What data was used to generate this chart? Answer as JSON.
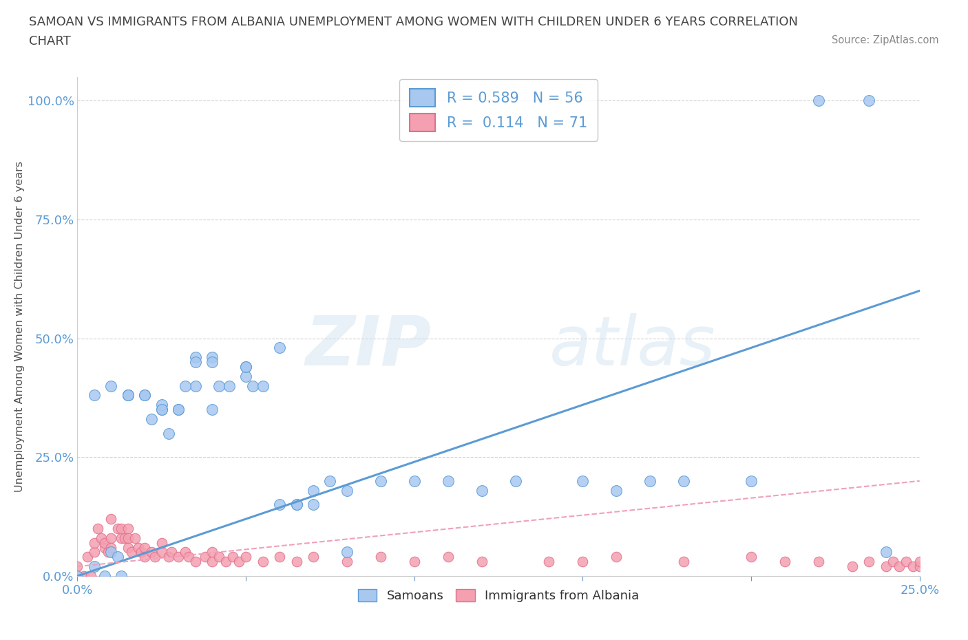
{
  "title_line1": "SAMOAN VS IMMIGRANTS FROM ALBANIA UNEMPLOYMENT AMONG WOMEN WITH CHILDREN UNDER 6 YEARS CORRELATION",
  "title_line2": "CHART",
  "source": "Source: ZipAtlas.com",
  "ylabel": "Unemployment Among Women with Children Under 6 years",
  "xlim": [
    0.0,
    0.25
  ],
  "ylim": [
    0.0,
    1.05
  ],
  "yticks": [
    0.0,
    0.25,
    0.5,
    0.75,
    1.0
  ],
  "ytick_labels": [
    "0.0%",
    "25.0%",
    "50.0%",
    "75.0%",
    "100.0%"
  ],
  "xticks": [
    0.0,
    0.05,
    0.1,
    0.15,
    0.2,
    0.25
  ],
  "xtick_labels": [
    "0.0%",
    "",
    "",
    "",
    "",
    "25.0%"
  ],
  "samoan_R": 0.589,
  "samoan_N": 56,
  "albania_R": 0.114,
  "albania_N": 71,
  "samoan_color": "#a8c8f0",
  "albania_color": "#f4a0b0",
  "samoan_line_color": "#5b9bd5",
  "albania_line_color": "#f0a0b8",
  "watermark_zip": "ZIP",
  "watermark_atlas": "atlas",
  "background_color": "#ffffff",
  "grid_color": "#cccccc",
  "title_color": "#444444",
  "axis_color": "#5b9bd5",
  "samoan_scatter_x": [
    0.005,
    0.01,
    0.015,
    0.02,
    0.025,
    0.025,
    0.03,
    0.035,
    0.04,
    0.04,
    0.042,
    0.045,
    0.05,
    0.06,
    0.065,
    0.07,
    0.075,
    0.08,
    0.09,
    0.1,
    0.11,
    0.12,
    0.13,
    0.15,
    0.16,
    0.17,
    0.18,
    0.2,
    0.22,
    0.235,
    0.24,
    0.0,
    0.005,
    0.008,
    0.01,
    0.012,
    0.013,
    0.015,
    0.015,
    0.02,
    0.022,
    0.025,
    0.027,
    0.03,
    0.032,
    0.035,
    0.035,
    0.04,
    0.05,
    0.05,
    0.052,
    0.055,
    0.06,
    0.065,
    0.07,
    0.08
  ],
  "samoan_scatter_y": [
    0.38,
    0.4,
    0.38,
    0.38,
    0.35,
    0.36,
    0.35,
    0.4,
    0.46,
    0.45,
    0.4,
    0.4,
    0.44,
    0.15,
    0.15,
    0.18,
    0.2,
    0.18,
    0.2,
    0.2,
    0.2,
    0.18,
    0.2,
    0.2,
    0.18,
    0.2,
    0.2,
    0.2,
    1.0,
    1.0,
    0.05,
    0.0,
    0.02,
    0.0,
    0.05,
    0.04,
    0.0,
    0.38,
    0.38,
    0.38,
    0.33,
    0.35,
    0.3,
    0.35,
    0.4,
    0.46,
    0.45,
    0.35,
    0.42,
    0.44,
    0.4,
    0.4,
    0.48,
    0.15,
    0.15,
    0.05
  ],
  "albania_scatter_x": [
    0.0,
    0.0,
    0.002,
    0.003,
    0.004,
    0.005,
    0.005,
    0.006,
    0.007,
    0.008,
    0.008,
    0.009,
    0.01,
    0.01,
    0.01,
    0.012,
    0.013,
    0.013,
    0.014,
    0.015,
    0.015,
    0.015,
    0.016,
    0.017,
    0.018,
    0.019,
    0.02,
    0.02,
    0.022,
    0.023,
    0.025,
    0.025,
    0.027,
    0.028,
    0.03,
    0.032,
    0.033,
    0.035,
    0.038,
    0.04,
    0.04,
    0.042,
    0.044,
    0.046,
    0.048,
    0.05,
    0.055,
    0.06,
    0.065,
    0.07,
    0.08,
    0.09,
    0.1,
    0.11,
    0.12,
    0.14,
    0.15,
    0.16,
    0.18,
    0.2,
    0.21,
    0.22,
    0.23,
    0.235,
    0.24,
    0.242,
    0.244,
    0.246,
    0.248,
    0.25,
    0.25
  ],
  "albania_scatter_y": [
    0.0,
    0.02,
    0.0,
    0.04,
    0.0,
    0.05,
    0.07,
    0.1,
    0.08,
    0.06,
    0.07,
    0.05,
    0.12,
    0.08,
    0.06,
    0.1,
    0.08,
    0.1,
    0.08,
    0.1,
    0.08,
    0.06,
    0.05,
    0.08,
    0.06,
    0.05,
    0.06,
    0.04,
    0.05,
    0.04,
    0.05,
    0.07,
    0.04,
    0.05,
    0.04,
    0.05,
    0.04,
    0.03,
    0.04,
    0.03,
    0.05,
    0.04,
    0.03,
    0.04,
    0.03,
    0.04,
    0.03,
    0.04,
    0.03,
    0.04,
    0.03,
    0.04,
    0.03,
    0.04,
    0.03,
    0.03,
    0.03,
    0.04,
    0.03,
    0.04,
    0.03,
    0.03,
    0.02,
    0.03,
    0.02,
    0.03,
    0.02,
    0.03,
    0.02,
    0.02,
    0.03
  ]
}
